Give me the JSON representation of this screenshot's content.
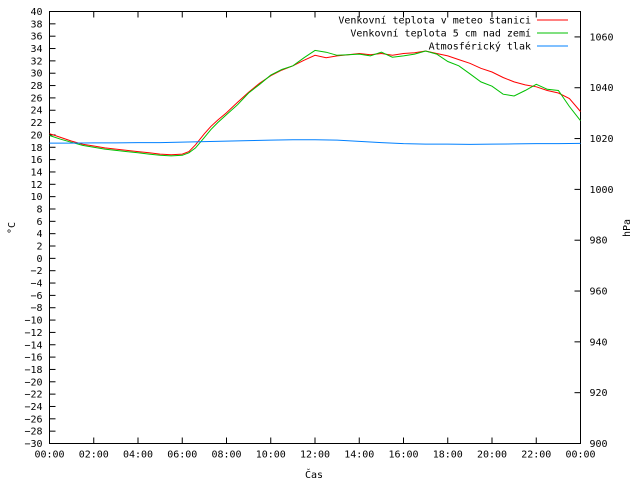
{
  "chart_data": {
    "type": "line",
    "title": "",
    "xlabel": "Čas",
    "ylabel": "°C",
    "y2label": "hPa",
    "legend_position": "top-right",
    "grid": false,
    "x_ticks": [
      "00:00",
      "02:00",
      "04:00",
      "06:00",
      "08:00",
      "10:00",
      "12:00",
      "14:00",
      "16:00",
      "18:00",
      "20:00",
      "22:00",
      "00:00"
    ],
    "x_range_hours": [
      0,
      24
    ],
    "ylim": [
      -30,
      40
    ],
    "y_ticks": [
      "40",
      "38",
      "36",
      "34",
      "32",
      "30",
      "28",
      "26",
      "24",
      "22",
      "20",
      "18",
      "16",
      "14",
      "12",
      "10",
      "8",
      "6",
      "4",
      "2",
      "0",
      "−2",
      "−4",
      "−6",
      "−8",
      "−10",
      "−12",
      "−14",
      "−16",
      "−18",
      "−20",
      "−22",
      "−24",
      "−26",
      "−28",
      "−30"
    ],
    "y2lim": [
      900,
      1070
    ],
    "y2_ticks": [
      "1060",
      "1040",
      "1020",
      "1000",
      "980",
      "960",
      "940",
      "920",
      "900"
    ],
    "series": [
      {
        "name": "Venkovní teplota v meteo stanici",
        "color": "#ff0000",
        "axis": "left",
        "x": [
          0,
          0.5,
          1,
          1.5,
          2,
          2.5,
          3,
          3.5,
          4,
          4.5,
          5,
          5.5,
          6,
          6.3,
          6.6,
          7,
          7.3,
          7.6,
          8,
          8.5,
          9,
          9.5,
          10,
          10.5,
          11,
          11.5,
          12,
          12.5,
          13,
          13.5,
          14,
          14.5,
          15,
          15.5,
          16,
          16.5,
          17,
          17.5,
          18,
          18.5,
          19,
          19.5,
          20,
          20.5,
          21,
          21.5,
          22,
          22.5,
          23,
          23.5,
          24
        ],
        "y": [
          20.2,
          19.6,
          19,
          18.5,
          18.2,
          17.9,
          17.7,
          17.5,
          17.3,
          17.1,
          16.9,
          16.8,
          16.9,
          17.3,
          18.4,
          20.2,
          21.4,
          22.4,
          23.6,
          25.3,
          26.9,
          28.4,
          29.6,
          30.5,
          31.2,
          32.1,
          32.9,
          32.5,
          32.8,
          33,
          33.2,
          33,
          33.2,
          32.9,
          33.2,
          33.3,
          33.6,
          33.2,
          32.8,
          32.2,
          31.6,
          30.8,
          30.2,
          29.3,
          28.6,
          28.1,
          27.8,
          27.2,
          26.8,
          25.9,
          23.8
        ]
      },
      {
        "name": "Venkovní teplota 5 cm nad zemí",
        "color": "#00c000",
        "axis": "left",
        "x": [
          0,
          0.5,
          1,
          1.5,
          2,
          2.5,
          3,
          3.5,
          4,
          4.5,
          5,
          5.5,
          6,
          6.3,
          6.6,
          7,
          7.3,
          7.6,
          8,
          8.5,
          9,
          9.5,
          10,
          10.5,
          11,
          11.5,
          12,
          12.5,
          13,
          13.5,
          14,
          14.5,
          15,
          15.5,
          16,
          16.5,
          17,
          17.5,
          18,
          18.5,
          19,
          19.5,
          20,
          20.5,
          21,
          21.5,
          22,
          22.5,
          23,
          23.5,
          24
        ],
        "y": [
          19.9,
          19.3,
          18.8,
          18.3,
          18,
          17.7,
          17.5,
          17.3,
          17.1,
          16.9,
          16.7,
          16.6,
          16.7,
          17.1,
          17.9,
          19.6,
          20.9,
          22,
          23.3,
          24.9,
          26.8,
          28.2,
          29.7,
          30.6,
          31.2,
          32.5,
          33.7,
          33.4,
          32.9,
          33,
          33.1,
          32.8,
          33.4,
          32.6,
          32.8,
          33.1,
          33.6,
          33.1,
          31.9,
          31.2,
          29.9,
          28.6,
          27.9,
          26.6,
          26.3,
          27.2,
          28.2,
          27.4,
          27.2,
          24.6,
          22.3
        ]
      },
      {
        "name": "Atmosférický tlak",
        "color": "#0080ff",
        "axis": "right",
        "x": [
          0,
          1,
          2,
          3,
          4,
          5,
          6,
          7,
          8,
          9,
          10,
          11,
          12,
          13,
          14,
          15,
          16,
          17,
          18,
          19,
          20,
          21,
          22,
          23,
          24
        ],
        "y": [
          1018.2,
          1018.2,
          1018.3,
          1018.3,
          1018.4,
          1018.4,
          1018.6,
          1018.8,
          1019,
          1019.2,
          1019.4,
          1019.5,
          1019.5,
          1019.4,
          1018.9,
          1018.4,
          1018,
          1017.8,
          1017.8,
          1017.7,
          1017.8,
          1017.9,
          1018,
          1018,
          1018.1
        ]
      }
    ]
  }
}
